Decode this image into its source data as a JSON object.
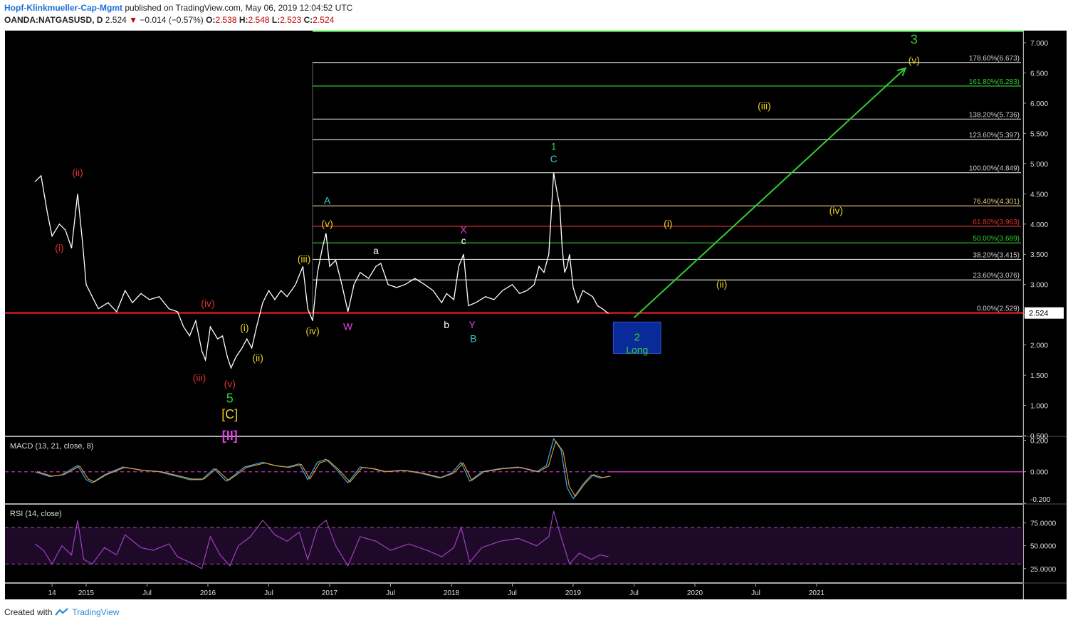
{
  "header": {
    "author": "Hopf-Klinkmueller-Cap-Mgmt",
    "published": "published on TradingView.com, May 06, 2019 12:04:52 UTC",
    "symbol": "OANDA:NATGASUSD, D",
    "last": "2.524",
    "arrow": "▼",
    "change": "−0.014 (−0.57%)",
    "o_label": "O:",
    "o": "2.538",
    "h_label": "H:",
    "h": "2.548",
    "l_label": "L:",
    "l": "2.523",
    "c_label": "C:",
    "c": "2.524"
  },
  "footer": {
    "created": "Created with",
    "brand": "TradingView"
  },
  "chart_data": {
    "type": "line",
    "price_axis": [
      "7.000",
      "6.500",
      "6.000",
      "5.500",
      "5.000",
      "4.500",
      "4.000",
      "3.500",
      "3.000",
      "2.500",
      "2.000",
      "1.500",
      "1.000",
      "0.500"
    ],
    "price_ylim": [
      0.5,
      7.2
    ],
    "last_price_label": "2.524",
    "support_level": 2.529,
    "x_axis_ticks": [
      {
        "label": "14",
        "t": 2014.72
      },
      {
        "label": "2015",
        "t": 2015.0
      },
      {
        "label": "Jul",
        "t": 2015.5
      },
      {
        "label": "2016",
        "t": 2016.0
      },
      {
        "label": "Jul",
        "t": 2016.5
      },
      {
        "label": "2017",
        "t": 2017.0
      },
      {
        "label": "Jul",
        "t": 2017.5
      },
      {
        "label": "2018",
        "t": 2018.0
      },
      {
        "label": "Jul",
        "t": 2018.5
      },
      {
        "label": "2019",
        "t": 2019.0
      },
      {
        "label": "Jul",
        "t": 2019.5
      },
      {
        "label": "2020",
        "t": 2020.0
      },
      {
        "label": "Jul",
        "t": 2020.5
      },
      {
        "label": "2021",
        "t": 2021.0
      }
    ],
    "price_series": [
      [
        2014.58,
        4.7
      ],
      [
        2014.63,
        4.8
      ],
      [
        2014.68,
        4.2
      ],
      [
        2014.72,
        3.8
      ],
      [
        2014.78,
        4.0
      ],
      [
        2014.83,
        3.9
      ],
      [
        2014.88,
        3.6
      ],
      [
        2014.93,
        4.5
      ],
      [
        2014.97,
        3.7
      ],
      [
        2015.0,
        3.0
      ],
      [
        2015.05,
        2.8
      ],
      [
        2015.1,
        2.6
      ],
      [
        2015.18,
        2.7
      ],
      [
        2015.25,
        2.55
      ],
      [
        2015.32,
        2.9
      ],
      [
        2015.38,
        2.7
      ],
      [
        2015.45,
        2.85
      ],
      [
        2015.52,
        2.75
      ],
      [
        2015.6,
        2.8
      ],
      [
        2015.68,
        2.6
      ],
      [
        2015.75,
        2.55
      ],
      [
        2015.8,
        2.3
      ],
      [
        2015.85,
        2.15
      ],
      [
        2015.9,
        2.4
      ],
      [
        2015.95,
        1.9
      ],
      [
        2015.98,
        1.75
      ],
      [
        2016.02,
        2.3
      ],
      [
        2016.08,
        2.1
      ],
      [
        2016.12,
        2.15
      ],
      [
        2016.16,
        1.8
      ],
      [
        2016.19,
        1.62
      ],
      [
        2016.23,
        1.8
      ],
      [
        2016.28,
        1.95
      ],
      [
        2016.32,
        2.1
      ],
      [
        2016.36,
        1.95
      ],
      [
        2016.4,
        2.3
      ],
      [
        2016.45,
        2.7
      ],
      [
        2016.5,
        2.9
      ],
      [
        2016.55,
        2.75
      ],
      [
        2016.6,
        2.9
      ],
      [
        2016.65,
        2.8
      ],
      [
        2016.72,
        3.0
      ],
      [
        2016.78,
        3.3
      ],
      [
        2016.82,
        2.6
      ],
      [
        2016.86,
        2.4
      ],
      [
        2016.9,
        3.2
      ],
      [
        2016.94,
        3.6
      ],
      [
        2016.97,
        3.85
      ],
      [
        2017.0,
        3.3
      ],
      [
        2017.05,
        3.4
      ],
      [
        2017.1,
        3.0
      ],
      [
        2017.15,
        2.55
      ],
      [
        2017.2,
        3.0
      ],
      [
        2017.25,
        3.2
      ],
      [
        2017.32,
        3.1
      ],
      [
        2017.38,
        3.3
      ],
      [
        2017.42,
        3.35
      ],
      [
        2017.48,
        3.0
      ],
      [
        2017.55,
        2.95
      ],
      [
        2017.62,
        3.0
      ],
      [
        2017.7,
        3.1
      ],
      [
        2017.78,
        3.0
      ],
      [
        2017.85,
        2.9
      ],
      [
        2017.92,
        2.7
      ],
      [
        2017.96,
        2.85
      ],
      [
        2018.02,
        2.75
      ],
      [
        2018.06,
        3.3
      ],
      [
        2018.1,
        3.5
      ],
      [
        2018.14,
        2.65
      ],
      [
        2018.2,
        2.7
      ],
      [
        2018.28,
        2.8
      ],
      [
        2018.35,
        2.75
      ],
      [
        2018.42,
        2.9
      ],
      [
        2018.5,
        3.0
      ],
      [
        2018.56,
        2.85
      ],
      [
        2018.62,
        2.9
      ],
      [
        2018.68,
        3.0
      ],
      [
        2018.72,
        3.3
      ],
      [
        2018.76,
        3.2
      ],
      [
        2018.8,
        3.5
      ],
      [
        2018.84,
        4.85
      ],
      [
        2018.87,
        4.5
      ],
      [
        2018.89,
        4.3
      ],
      [
        2018.91,
        3.6
      ],
      [
        2018.93,
        3.2
      ],
      [
        2018.95,
        3.3
      ],
      [
        2018.97,
        3.5
      ],
      [
        2019.0,
        2.95
      ],
      [
        2019.04,
        2.7
      ],
      [
        2019.08,
        2.9
      ],
      [
        2019.12,
        2.85
      ],
      [
        2019.16,
        2.8
      ],
      [
        2019.2,
        2.65
      ],
      [
        2019.24,
        2.6
      ],
      [
        2019.29,
        2.52
      ]
    ],
    "fib_levels": [
      {
        "label": "178.60%(6.673)",
        "value": 6.673,
        "color": "#d0d0d0"
      },
      {
        "label": "161.80%(6.283)",
        "value": 6.283,
        "color": "#33cc33"
      },
      {
        "label": "138.20%(5.736)",
        "value": 5.736,
        "color": "#d0d0d0"
      },
      {
        "label": "123.60%(5.397)",
        "value": 5.397,
        "color": "#d0d0d0"
      },
      {
        "label": "100.00%(4.849)",
        "value": 4.849,
        "color": "#d0d0d0"
      },
      {
        "label": "76.40%(4.301)",
        "value": 4.301,
        "color": "#e6c88a"
      },
      {
        "label": "61.80%(3.963)",
        "value": 3.963,
        "color": "#e03030"
      },
      {
        "label": "50.00%(3.689)",
        "value": 3.689,
        "color": "#33cc33"
      },
      {
        "label": "38.20%(3.415)",
        "value": 3.415,
        "color": "#d0d0d0"
      },
      {
        "label": "23.60%(3.076)",
        "value": 3.076,
        "color": "#d0d0d0"
      },
      {
        "label": "0.00%(2.529)",
        "value": 2.529,
        "color": "#d0d0d0"
      }
    ],
    "wave_labels": [
      {
        "text": "(i)",
        "t": 2014.78,
        "p": 3.55,
        "color": "#e03030"
      },
      {
        "text": "(ii)",
        "t": 2014.93,
        "p": 4.8,
        "color": "#e03030"
      },
      {
        "text": "(iii)",
        "t": 2015.93,
        "p": 1.4,
        "color": "#e03030"
      },
      {
        "text": "(iv)",
        "t": 2016.0,
        "p": 2.63,
        "color": "#e03030"
      },
      {
        "text": "(v)",
        "t": 2016.18,
        "p": 1.3,
        "color": "#e03030"
      },
      {
        "text": "5",
        "t": 2016.18,
        "p": 1.05,
        "color": "#33cc33"
      },
      {
        "text": "[C]",
        "t": 2016.18,
        "p": 0.78,
        "color": "#e8d020"
      },
      {
        "text": "[II]",
        "t": 2016.18,
        "p": 0.43,
        "color": "#e040e0"
      },
      {
        "text": "(i)",
        "t": 2016.3,
        "p": 2.23,
        "color": "#e8d020"
      },
      {
        "text": "(ii)",
        "t": 2016.41,
        "p": 1.73,
        "color": "#e8d020"
      },
      {
        "text": "(iii)",
        "t": 2016.79,
        "p": 3.37,
        "color": "#e8d020"
      },
      {
        "text": "(iv)",
        "t": 2016.86,
        "p": 2.18,
        "color": "#e8d020"
      },
      {
        "text": "A",
        "t": 2016.98,
        "p": 4.33,
        "color": "#33cccc"
      },
      {
        "text": "(v)",
        "t": 2016.98,
        "p": 3.95,
        "color": "#e8d020"
      },
      {
        "text": "W",
        "t": 2017.15,
        "p": 2.25,
        "color": "#e040e0"
      },
      {
        "text": "a",
        "t": 2017.38,
        "p": 3.5,
        "color": "#ffffff"
      },
      {
        "text": "b",
        "t": 2017.96,
        "p": 2.28,
        "color": "#ffffff"
      },
      {
        "text": "X",
        "t": 2018.1,
        "p": 3.85,
        "color": "#e040e0"
      },
      {
        "text": "c",
        "t": 2018.1,
        "p": 3.67,
        "color": "#ffffff"
      },
      {
        "text": "Y",
        "t": 2018.17,
        "p": 2.28,
        "color": "#e040e0"
      },
      {
        "text": "B",
        "t": 2018.18,
        "p": 2.05,
        "color": "#33cccc"
      },
      {
        "text": "1",
        "t": 2018.84,
        "p": 5.23,
        "color": "#33cc33"
      },
      {
        "text": "C",
        "t": 2018.84,
        "p": 5.02,
        "color": "#33cccc"
      },
      {
        "text": "(i)",
        "t": 2019.78,
        "p": 3.95,
        "color": "#e8d020"
      },
      {
        "text": "(ii)",
        "t": 2020.22,
        "p": 2.95,
        "color": "#e8d020"
      },
      {
        "text": "(iii)",
        "t": 2020.57,
        "p": 5.9,
        "color": "#e8d020"
      },
      {
        "text": "(iv)",
        "t": 2021.16,
        "p": 4.17,
        "color": "#e8d020"
      },
      {
        "text": "3",
        "t": 2021.8,
        "p": 6.98,
        "color": "#33cc33"
      },
      {
        "text": "(v)",
        "t": 2021.8,
        "p": 6.65,
        "color": "#e8d020"
      }
    ],
    "target_box": {
      "line1": "2",
      "line2": "Long",
      "t0": 2019.33,
      "t1": 2019.72,
      "p0": 1.86,
      "p1": 2.38
    },
    "target_arrow": {
      "t0": 2019.5,
      "p0": 2.45,
      "t1": 2021.73,
      "p1": 6.58
    },
    "macd": {
      "label": "MACD (13, 21, close, 8)",
      "axis": [
        "0.200",
        "0.000",
        "-0.200"
      ],
      "ylim": [
        -0.2,
        0.22
      ],
      "series": [
        [
          2014.58,
          0.0
        ],
        [
          2014.7,
          -0.03
        ],
        [
          2014.8,
          -0.02
        ],
        [
          2014.93,
          0.04
        ],
        [
          2015.0,
          -0.05
        ],
        [
          2015.05,
          -0.07
        ],
        [
          2015.15,
          -0.02
        ],
        [
          2015.3,
          0.03
        ],
        [
          2015.45,
          0.01
        ],
        [
          2015.6,
          0.0
        ],
        [
          2015.75,
          -0.03
        ],
        [
          2015.85,
          -0.05
        ],
        [
          2015.95,
          -0.05
        ],
        [
          2016.05,
          0.02
        ],
        [
          2016.15,
          -0.06
        ],
        [
          2016.22,
          -0.02
        ],
        [
          2016.3,
          0.03
        ],
        [
          2016.45,
          0.06
        ],
        [
          2016.55,
          0.04
        ],
        [
          2016.65,
          0.03
        ],
        [
          2016.75,
          0.05
        ],
        [
          2016.82,
          -0.05
        ],
        [
          2016.9,
          0.06
        ],
        [
          2016.97,
          0.08
        ],
        [
          2017.05,
          0.02
        ],
        [
          2017.15,
          -0.07
        ],
        [
          2017.25,
          0.03
        ],
        [
          2017.35,
          0.02
        ],
        [
          2017.45,
          0.0
        ],
        [
          2017.6,
          0.01
        ],
        [
          2017.75,
          -0.01
        ],
        [
          2017.9,
          -0.04
        ],
        [
          2018.0,
          -0.01
        ],
        [
          2018.08,
          0.06
        ],
        [
          2018.15,
          -0.06
        ],
        [
          2018.25,
          0.0
        ],
        [
          2018.4,
          0.02
        ],
        [
          2018.55,
          0.03
        ],
        [
          2018.7,
          0.0
        ],
        [
          2018.78,
          0.04
        ],
        [
          2018.84,
          0.21
        ],
        [
          2018.9,
          0.14
        ],
        [
          2018.95,
          -0.1
        ],
        [
          2019.0,
          -0.17
        ],
        [
          2019.08,
          -0.08
        ],
        [
          2019.15,
          -0.02
        ],
        [
          2019.22,
          -0.04
        ],
        [
          2019.29,
          -0.03
        ]
      ]
    },
    "rsi": {
      "label": "RSI (14, close)",
      "axis": [
        "75.0000",
        "50.0000",
        "25.0000"
      ],
      "ylim": [
        10,
        95
      ],
      "bands": [
        30,
        70
      ],
      "series": [
        [
          2014.58,
          52
        ],
        [
          2014.65,
          45
        ],
        [
          2014.72,
          30
        ],
        [
          2014.8,
          50
        ],
        [
          2014.88,
          40
        ],
        [
          2014.93,
          78
        ],
        [
          2014.98,
          35
        ],
        [
          2015.05,
          30
        ],
        [
          2015.15,
          48
        ],
        [
          2015.25,
          40
        ],
        [
          2015.32,
          62
        ],
        [
          2015.45,
          48
        ],
        [
          2015.55,
          45
        ],
        [
          2015.68,
          52
        ],
        [
          2015.75,
          38
        ],
        [
          2015.85,
          32
        ],
        [
          2015.95,
          25
        ],
        [
          2016.02,
          60
        ],
        [
          2016.1,
          40
        ],
        [
          2016.18,
          28
        ],
        [
          2016.25,
          50
        ],
        [
          2016.35,
          60
        ],
        [
          2016.45,
          78
        ],
        [
          2016.55,
          62
        ],
        [
          2016.65,
          55
        ],
        [
          2016.75,
          65
        ],
        [
          2016.82,
          35
        ],
        [
          2016.9,
          70
        ],
        [
          2016.97,
          78
        ],
        [
          2017.05,
          50
        ],
        [
          2017.15,
          28
        ],
        [
          2017.25,
          60
        ],
        [
          2017.38,
          55
        ],
        [
          2017.5,
          45
        ],
        [
          2017.65,
          52
        ],
        [
          2017.8,
          45
        ],
        [
          2017.92,
          38
        ],
        [
          2018.02,
          48
        ],
        [
          2018.08,
          70
        ],
        [
          2018.15,
          32
        ],
        [
          2018.25,
          48
        ],
        [
          2018.4,
          55
        ],
        [
          2018.55,
          58
        ],
        [
          2018.7,
          50
        ],
        [
          2018.8,
          60
        ],
        [
          2018.84,
          88
        ],
        [
          2018.9,
          60
        ],
        [
          2018.97,
          30
        ],
        [
          2019.05,
          42
        ],
        [
          2019.15,
          35
        ],
        [
          2019.22,
          40
        ],
        [
          2019.29,
          38
        ]
      ]
    }
  }
}
